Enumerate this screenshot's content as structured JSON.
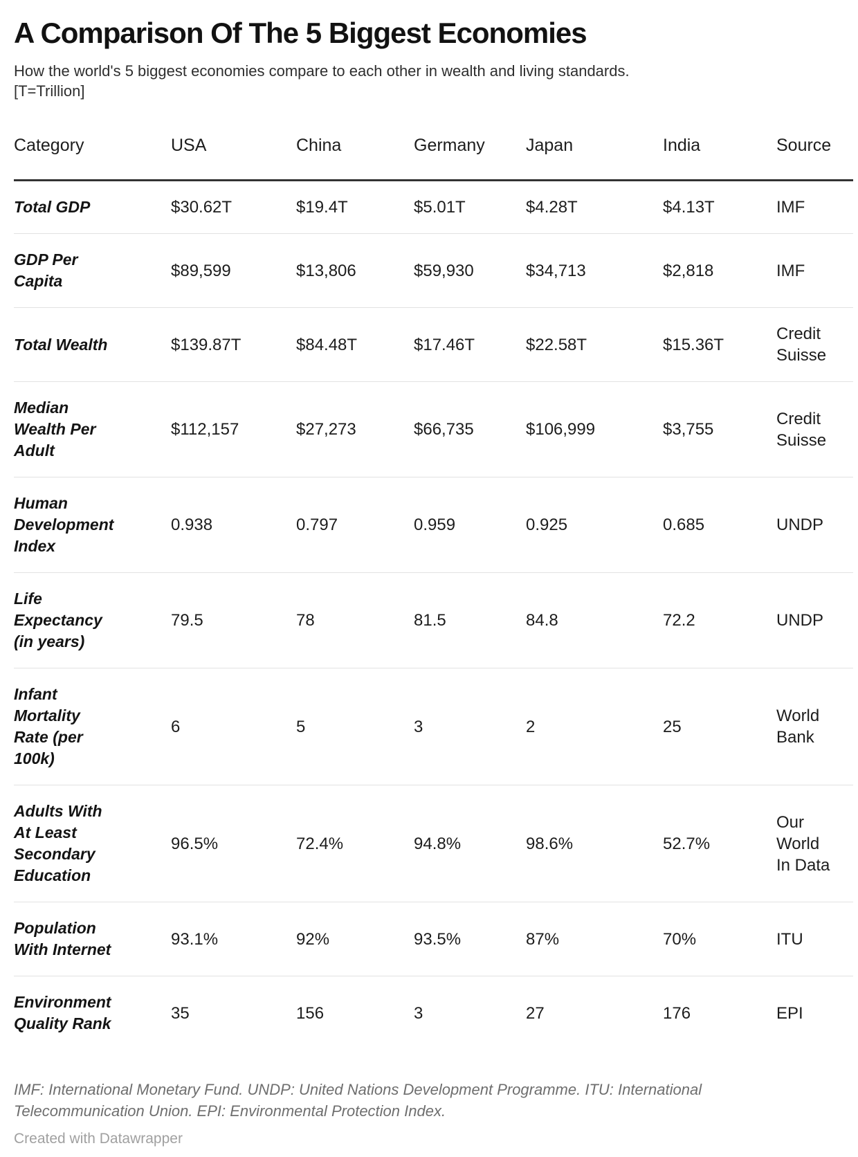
{
  "colors": {
    "text": "#1d1d1d",
    "header_rule": "#333333",
    "row_rule": "#e2e2e2",
    "notes_text": "#6e6e6e",
    "credit_text": "#a0a0a0",
    "background": "#ffffff"
  },
  "chart_data": {
    "type": "table",
    "title": "A Comparison Of The 5 Biggest Economies",
    "subtitle": "How the world's 5 biggest economies compare to each other in wealth and living standards.\n[T=Trillion]",
    "columns": [
      "Category",
      "USA",
      "China",
      "Germany",
      "Japan",
      "India",
      "Source"
    ],
    "rows": [
      {
        "category": "Total GDP",
        "values": [
          "$30.62T",
          "$19.4T",
          "$5.01T",
          "$4.28T",
          "$4.13T"
        ],
        "source": "IMF"
      },
      {
        "category": "GDP Per\nCapita",
        "values": [
          "$89,599",
          "$13,806",
          "$59,930",
          "$34,713",
          "$2,818"
        ],
        "source": "IMF"
      },
      {
        "category": "Total Wealth",
        "values": [
          "$139.87T",
          "$84.48T",
          "$17.46T",
          "$22.58T",
          "$15.36T"
        ],
        "source": "Credit\nSuisse"
      },
      {
        "category": "Median\nWealth Per\nAdult",
        "values": [
          "$112,157",
          "$27,273",
          "$66,735",
          "$106,999",
          "$3,755"
        ],
        "source": "Credit\nSuisse"
      },
      {
        "category": "Human\nDevelopment\nIndex",
        "values": [
          "0.938",
          "0.797",
          "0.959",
          "0.925",
          "0.685"
        ],
        "source": "UNDP"
      },
      {
        "category": "Life\nExpectancy\n(in years)",
        "values": [
          "79.5",
          "78",
          "81.5",
          "84.8",
          "72.2"
        ],
        "source": "UNDP"
      },
      {
        "category": "Infant\nMortality\nRate (per\n100k)",
        "values": [
          "6",
          "5",
          "3",
          "2",
          "25"
        ],
        "source": "World\nBank"
      },
      {
        "category": "Adults With\nAt Least\nSecondary\nEducation",
        "values": [
          "96.5%",
          "72.4%",
          "94.8%",
          "98.6%",
          "52.7%"
        ],
        "source": "Our\nWorld\nIn Data"
      },
      {
        "category": "Population\nWith Internet",
        "values": [
          "93.1%",
          "92%",
          "93.5%",
          "87%",
          "70%"
        ],
        "source": "ITU"
      },
      {
        "category": "Environment\nQuality Rank",
        "values": [
          "35",
          "156",
          "3",
          "27",
          "176"
        ],
        "source": "EPI"
      }
    ],
    "notes": "IMF: International Monetary Fund. UNDP: United Nations Development Programme. ITU: International\nTelecommunication Union. EPI: Environmental Protection Index.",
    "credit": "Created with Datawrapper"
  }
}
